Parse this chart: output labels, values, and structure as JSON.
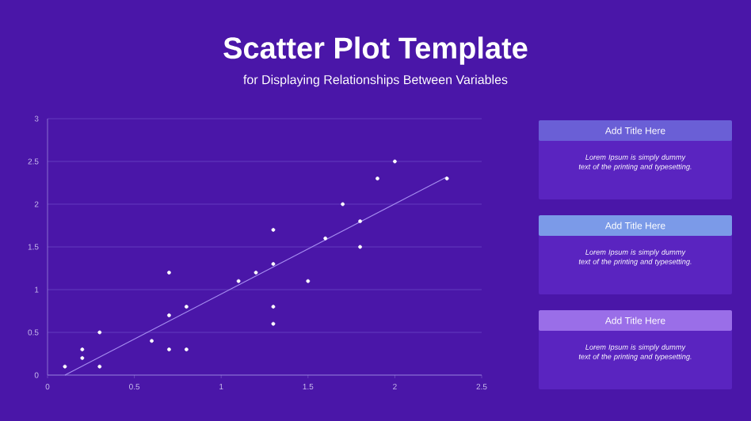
{
  "chart_data": [
    {
      "type": "scatter",
      "title": "Scatter Plot Template",
      "subtitle": "for Displaying Relationships Between Variables",
      "xlim": [
        0,
        2.5
      ],
      "ylim": [
        0,
        3
      ],
      "xticks": [
        0,
        0.5,
        1,
        1.5,
        2,
        2.5
      ],
      "yticks": [
        0,
        0.5,
        1,
        1.5,
        2,
        2.5,
        3
      ],
      "grid": "y",
      "series": [
        {
          "type": "scatter",
          "marker": "circle",
          "color": "#ffffff",
          "x": [
            0.1,
            0.2,
            0.2,
            0.3,
            0.3,
            0.6,
            0.7,
            0.7,
            0.7,
            0.8,
            0.8,
            1.1,
            1.2,
            1.3,
            1.3,
            1.3,
            1.3,
            1.5,
            1.6,
            1.7,
            1.8,
            1.8,
            1.9,
            2.0,
            2.3
          ],
          "values": [
            0.1,
            0.3,
            0.2,
            0.5,
            0.1,
            0.4,
            1.2,
            0.7,
            0.3,
            0.8,
            0.3,
            1.1,
            1.2,
            1.7,
            1.3,
            0.8,
            0.6,
            1.1,
            1.6,
            2.0,
            1.8,
            1.5,
            2.3,
            2.5,
            2.3
          ]
        },
        {
          "type": "line",
          "marker": "none",
          "color": "#a58cf0",
          "x": [
            0.1,
            2.3
          ],
          "values": [
            0,
            2.32
          ]
        }
      ]
    },
    {
      "type": "other",
      "title": "Add Title Here",
      "color": "#6a5fd6",
      "annotations": [
        "Lorem Ipsum is simply dummy text of the printing and typesetting."
      ]
    },
    {
      "type": "other",
      "title": "Add Title Here",
      "color": "#7b9ae8",
      "annotations": [
        "Lorem Ipsum is simply dummy text of the printing and typesetting."
      ]
    },
    {
      "type": "other",
      "title": "Add Title Here",
      "color": "#9a6ee8",
      "annotations": [
        "Lorem Ipsum is simply dummy text of the printing and typesetting."
      ]
    }
  ]
}
